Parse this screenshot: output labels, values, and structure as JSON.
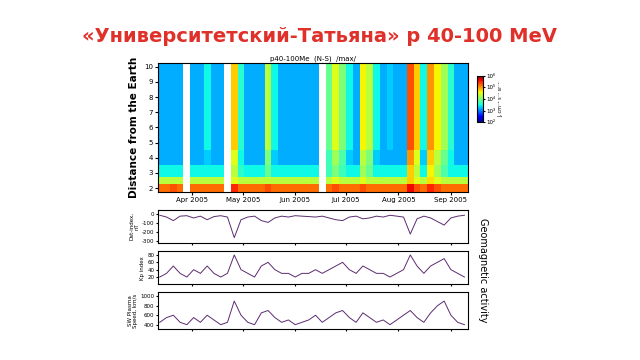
{
  "slide": {
    "title": "«Университетский-Татьяна» p 40-100 MeV",
    "color": "#e0302a"
  },
  "group_label": "Geomagnetic activity",
  "chart_data": [
    {
      "type": "heatmap",
      "title": "p40-100Me  (N-S)  /max/",
      "ylabel": "Distance from the Earth",
      "x": [
        86,
        90,
        94,
        98,
        102,
        106,
        110,
        114,
        118,
        122,
        126,
        130,
        134,
        138,
        142,
        146,
        150,
        154,
        158,
        162,
        166,
        170,
        174,
        178,
        182,
        186,
        190,
        194,
        198,
        202,
        206,
        210,
        214,
        218,
        222,
        226,
        230,
        234,
        238,
        242,
        246,
        250,
        254,
        258,
        262,
        266
      ],
      "y": [
        2,
        2.5,
        3,
        4,
        5,
        6,
        7,
        8,
        9,
        10
      ],
      "cells": [
        [
          150000,
          150000,
          200000,
          150000,
          null,
          150000,
          150000,
          150000,
          150000,
          150000,
          null,
          300000,
          150000,
          150000,
          150000,
          150000,
          200000,
          150000,
          150000,
          150000,
          150000,
          150000,
          150000,
          150000,
          null,
          150000,
          200000,
          150000,
          150000,
          150000,
          200000,
          150000,
          150000,
          150000,
          150000,
          150000,
          150000,
          400000,
          200000,
          150000,
          300000,
          200000,
          150000,
          150000,
          150000,
          150000
        ],
        [
          20000,
          20000,
          20000,
          20000,
          null,
          20000,
          20000,
          20000,
          20000,
          20000,
          null,
          30000,
          20000,
          20000,
          20000,
          20000,
          20000,
          20000,
          20000,
          20000,
          20000,
          20000,
          20000,
          20000,
          null,
          20000,
          30000,
          20000,
          20000,
          20000,
          30000,
          20000,
          20000,
          20000,
          20000,
          20000,
          20000,
          60000,
          30000,
          20000,
          50000,
          30000,
          20000,
          20000,
          20000,
          20000
        ],
        [
          3000,
          3000,
          3000,
          3000,
          null,
          3000,
          3000,
          3000,
          3000,
          3000,
          null,
          20000,
          4000,
          3000,
          3000,
          3000,
          8000,
          3000,
          3000,
          3000,
          3000,
          3000,
          3000,
          3000,
          null,
          5000,
          10000,
          5000,
          3000,
          3000,
          15000,
          8000,
          3000,
          3000,
          3000,
          3000,
          3000,
          60000,
          20000,
          3000,
          40000,
          15000,
          6000,
          3000,
          3000,
          3000
        ],
        [
          1500,
          1500,
          1500,
          1500,
          null,
          1500,
          1500,
          2000,
          1500,
          1500,
          null,
          30000,
          3000,
          1500,
          1500,
          1500,
          10000,
          2000,
          1500,
          1500,
          1500,
          1500,
          1500,
          1500,
          null,
          5000,
          15000,
          6000,
          2000,
          1500,
          20000,
          10000,
          2000,
          1500,
          1500,
          1500,
          1500,
          100000,
          30000,
          2000,
          60000,
          20000,
          8000,
          3000,
          1500,
          1500
        ],
        [
          1500,
          1500,
          1500,
          1500,
          null,
          1500,
          1500,
          3000,
          1500,
          1500,
          null,
          60000,
          4000,
          1500,
          1500,
          1500,
          20000,
          3000,
          1500,
          1500,
          1500,
          1500,
          1500,
          1500,
          null,
          8000,
          30000,
          10000,
          3000,
          1500,
          40000,
          20000,
          3000,
          1500,
          2000,
          1500,
          1500,
          200000,
          60000,
          3000,
          100000,
          40000,
          15000,
          4000,
          1500,
          1500
        ],
        [
          1500,
          1500,
          1500,
          1500,
          null,
          1500,
          1500,
          3000,
          1500,
          1500,
          null,
          60000,
          4000,
          1500,
          1500,
          1500,
          20000,
          3000,
          1500,
          1500,
          1500,
          1500,
          1500,
          1500,
          null,
          8000,
          30000,
          10000,
          3000,
          1500,
          40000,
          20000,
          3000,
          1500,
          2000,
          1500,
          1500,
          200000,
          60000,
          3000,
          100000,
          40000,
          15000,
          4000,
          1500,
          1500
        ],
        [
          1500,
          1500,
          1500,
          1500,
          null,
          1500,
          1500,
          3000,
          1500,
          1500,
          null,
          60000,
          4000,
          1500,
          1500,
          1500,
          20000,
          3000,
          1500,
          1500,
          1500,
          1500,
          1500,
          1500,
          null,
          8000,
          30000,
          10000,
          3000,
          1500,
          40000,
          20000,
          3000,
          1500,
          2000,
          1500,
          1500,
          200000,
          60000,
          3000,
          100000,
          40000,
          15000,
          4000,
          1500,
          1500
        ],
        [
          1500,
          1500,
          1500,
          1500,
          null,
          1500,
          1500,
          3000,
          1500,
          1500,
          null,
          60000,
          4000,
          1500,
          1500,
          1500,
          20000,
          3000,
          1500,
          1500,
          1500,
          1500,
          1500,
          1500,
          null,
          8000,
          30000,
          10000,
          3000,
          1500,
          40000,
          20000,
          3000,
          1500,
          2000,
          1500,
          1500,
          200000,
          60000,
          3000,
          100000,
          40000,
          15000,
          4000,
          1500,
          1500
        ],
        [
          1500,
          1500,
          1500,
          1500,
          null,
          1500,
          1500,
          3000,
          1500,
          1500,
          null,
          60000,
          4000,
          1500,
          1500,
          1500,
          20000,
          3000,
          1500,
          1500,
          1500,
          1500,
          1500,
          1500,
          null,
          8000,
          30000,
          10000,
          3000,
          1500,
          40000,
          20000,
          3000,
          1500,
          2000,
          1500,
          1500,
          200000,
          60000,
          3000,
          100000,
          40000,
          15000,
          4000,
          1500,
          1500
        ],
        [
          1500,
          1500,
          1500,
          1500,
          null,
          1500,
          1500,
          3000,
          1500,
          1500,
          null,
          60000,
          4000,
          1500,
          1500,
          1500,
          20000,
          3000,
          1500,
          1500,
          1500,
          1500,
          1500,
          1500,
          null,
          8000,
          30000,
          10000,
          3000,
          1500,
          40000,
          20000,
          3000,
          1500,
          2000,
          1500,
          1500,
          200000,
          60000,
          3000,
          100000,
          40000,
          15000,
          4000,
          1500,
          1500
        ]
      ],
      "xlim": [
        85,
        268
      ],
      "xticks": [
        {
          "value": 105,
          "label": "Apr 2005"
        },
        {
          "value": 135,
          "label": "May 2005"
        },
        {
          "value": 166,
          "label": "Jun 2005"
        },
        {
          "value": 196,
          "label": "Jul 2005"
        },
        {
          "value": 227,
          "label": "Aug 2005"
        },
        {
          "value": 258,
          "label": "Sep 2005"
        }
      ],
      "ylim": [
        1.75,
        10.25
      ],
      "yticks": [
        2,
        3,
        4,
        5,
        6,
        7,
        8,
        9,
        10
      ],
      "colorbar": {
        "label": "J, cm⁻² s⁻¹ sr⁻¹",
        "range": [
          100,
          1000000
        ],
        "log": true,
        "ticks": [
          {
            "value": 100,
            "label": "10²"
          },
          {
            "value": 1000,
            "label": "10³"
          },
          {
            "value": 10000,
            "label": "10⁴"
          },
          {
            "value": 100000,
            "label": "10⁵"
          },
          {
            "value": 1000000,
            "label": "10⁶"
          }
        ]
      }
    },
    {
      "type": "line",
      "ylabel": "Dst-index,\nnT",
      "color": "#5b2c6f",
      "tick_labels": "y",
      "x": [
        86,
        90,
        94,
        98,
        102,
        106,
        110,
        114,
        118,
        122,
        126,
        130,
        134,
        138,
        142,
        146,
        150,
        154,
        158,
        162,
        166,
        170,
        174,
        178,
        182,
        186,
        190,
        194,
        198,
        202,
        206,
        210,
        214,
        218,
        222,
        226,
        230,
        234,
        238,
        242,
        246,
        250,
        254,
        258,
        262,
        266
      ],
      "values": [
        -10,
        -30,
        -70,
        -20,
        -15,
        -40,
        -20,
        -60,
        -25,
        -15,
        -30,
        -260,
        -60,
        -30,
        -20,
        -70,
        -90,
        -40,
        -20,
        -30,
        -15,
        -20,
        -25,
        -30,
        -20,
        -40,
        -60,
        -70,
        -30,
        -20,
        -50,
        -40,
        -20,
        -30,
        -10,
        -20,
        -30,
        -220,
        -50,
        -20,
        -40,
        -80,
        -120,
        -40,
        -20,
        -10
      ],
      "xlim": [
        85,
        268
      ],
      "xticks": [
        105,
        135,
        166,
        196,
        227,
        258
      ],
      "ylim": [
        -320,
        50
      ],
      "yticks": [
        -300,
        -200,
        -100,
        0
      ]
    },
    {
      "type": "line",
      "ylabel": "Kp index",
      "color": "#5b2c6f",
      "tick_labels": "y",
      "x": [
        86,
        90,
        94,
        98,
        102,
        106,
        110,
        114,
        118,
        122,
        126,
        130,
        134,
        138,
        142,
        146,
        150,
        154,
        158,
        162,
        166,
        170,
        174,
        178,
        182,
        186,
        190,
        194,
        198,
        202,
        206,
        210,
        214,
        218,
        222,
        226,
        230,
        234,
        238,
        242,
        246,
        250,
        254,
        258,
        262,
        266
      ],
      "values": [
        20,
        30,
        50,
        30,
        20,
        40,
        30,
        50,
        30,
        20,
        30,
        80,
        40,
        30,
        20,
        50,
        60,
        40,
        30,
        30,
        20,
        30,
        30,
        40,
        30,
        40,
        50,
        60,
        40,
        30,
        50,
        40,
        30,
        30,
        20,
        30,
        40,
        80,
        50,
        30,
        50,
        60,
        70,
        40,
        30,
        20
      ],
      "xlim": [
        85,
        268
      ],
      "xticks": [
        105,
        135,
        166,
        196,
        227,
        258
      ],
      "ylim": [
        0,
        90
      ],
      "yticks": [
        20,
        40,
        60,
        80
      ]
    },
    {
      "type": "line",
      "ylabel": "SW Plasma\nSpeed, km/s",
      "color": "#5b2c6f",
      "tick_labels": "y",
      "x": [
        86,
        90,
        94,
        98,
        102,
        106,
        110,
        114,
        118,
        122,
        126,
        130,
        134,
        138,
        142,
        146,
        150,
        154,
        158,
        162,
        166,
        170,
        174,
        178,
        182,
        186,
        190,
        194,
        198,
        202,
        206,
        210,
        214,
        218,
        222,
        226,
        230,
        234,
        238,
        242,
        246,
        250,
        254,
        258,
        262,
        266
      ],
      "values": [
        450,
        550,
        600,
        450,
        400,
        550,
        450,
        600,
        500,
        400,
        450,
        900,
        600,
        450,
        400,
        650,
        700,
        550,
        450,
        500,
        400,
        450,
        500,
        600,
        450,
        550,
        650,
        700,
        550,
        450,
        650,
        550,
        450,
        500,
        400,
        500,
        600,
        700,
        550,
        450,
        650,
        800,
        900,
        600,
        450,
        400
      ],
      "xlim": [
        85,
        268
      ],
      "xticks": [
        105,
        135,
        166,
        196,
        227,
        258
      ],
      "ylim": [
        300,
        1100
      ],
      "yticks": [
        400,
        600,
        800,
        1000
      ]
    }
  ]
}
